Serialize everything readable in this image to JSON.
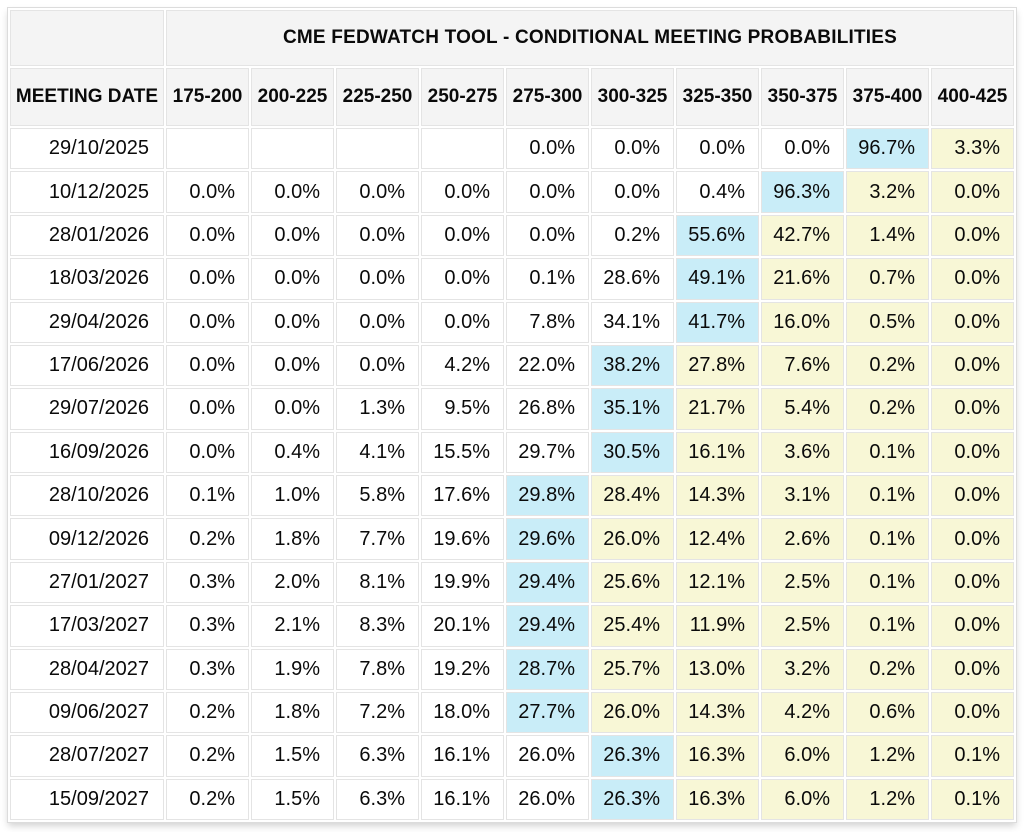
{
  "colors": {
    "highlight_blue": "#c9edf8",
    "highlight_yellow": "#f8f7d6",
    "header_bg": "#f4f4f4",
    "grid_line": "#e4e4e4"
  },
  "chart_data": {
    "type": "table",
    "title": "CME FEDWATCH TOOL - CONDITIONAL MEETING PROBABILITIES",
    "row_header_label": "MEETING DATE",
    "columns": [
      "175-200",
      "200-225",
      "225-250",
      "250-275",
      "275-300",
      "300-325",
      "325-350",
      "350-375",
      "375-400",
      "400-425"
    ],
    "rows": [
      {
        "date": "29/10/2025",
        "values": [
          "",
          "",
          "",
          "",
          "0.0%",
          "0.0%",
          "0.0%",
          "0.0%",
          "96.7%",
          "3.3%"
        ],
        "highlight_col": 8
      },
      {
        "date": "10/12/2025",
        "values": [
          "0.0%",
          "0.0%",
          "0.0%",
          "0.0%",
          "0.0%",
          "0.0%",
          "0.4%",
          "96.3%",
          "3.2%",
          "0.0%"
        ],
        "highlight_col": 7
      },
      {
        "date": "28/01/2026",
        "values": [
          "0.0%",
          "0.0%",
          "0.0%",
          "0.0%",
          "0.0%",
          "0.2%",
          "55.6%",
          "42.7%",
          "1.4%",
          "0.0%"
        ],
        "highlight_col": 6
      },
      {
        "date": "18/03/2026",
        "values": [
          "0.0%",
          "0.0%",
          "0.0%",
          "0.0%",
          "0.1%",
          "28.6%",
          "49.1%",
          "21.6%",
          "0.7%",
          "0.0%"
        ],
        "highlight_col": 6
      },
      {
        "date": "29/04/2026",
        "values": [
          "0.0%",
          "0.0%",
          "0.0%",
          "0.0%",
          "7.8%",
          "34.1%",
          "41.7%",
          "16.0%",
          "0.5%",
          "0.0%"
        ],
        "highlight_col": 6
      },
      {
        "date": "17/06/2026",
        "values": [
          "0.0%",
          "0.0%",
          "0.0%",
          "4.2%",
          "22.0%",
          "38.2%",
          "27.8%",
          "7.6%",
          "0.2%",
          "0.0%"
        ],
        "highlight_col": 5
      },
      {
        "date": "29/07/2026",
        "values": [
          "0.0%",
          "0.0%",
          "1.3%",
          "9.5%",
          "26.8%",
          "35.1%",
          "21.7%",
          "5.4%",
          "0.2%",
          "0.0%"
        ],
        "highlight_col": 5
      },
      {
        "date": "16/09/2026",
        "values": [
          "0.0%",
          "0.4%",
          "4.1%",
          "15.5%",
          "29.7%",
          "30.5%",
          "16.1%",
          "3.6%",
          "0.1%",
          "0.0%"
        ],
        "highlight_col": 5
      },
      {
        "date": "28/10/2026",
        "values": [
          "0.1%",
          "1.0%",
          "5.8%",
          "17.6%",
          "29.8%",
          "28.4%",
          "14.3%",
          "3.1%",
          "0.1%",
          "0.0%"
        ],
        "highlight_col": 4
      },
      {
        "date": "09/12/2026",
        "values": [
          "0.2%",
          "1.8%",
          "7.7%",
          "19.6%",
          "29.6%",
          "26.0%",
          "12.4%",
          "2.6%",
          "0.1%",
          "0.0%"
        ],
        "highlight_col": 4
      },
      {
        "date": "27/01/2027",
        "values": [
          "0.3%",
          "2.0%",
          "8.1%",
          "19.9%",
          "29.4%",
          "25.6%",
          "12.1%",
          "2.5%",
          "0.1%",
          "0.0%"
        ],
        "highlight_col": 4
      },
      {
        "date": "17/03/2027",
        "values": [
          "0.3%",
          "2.1%",
          "8.3%",
          "20.1%",
          "29.4%",
          "25.4%",
          "11.9%",
          "2.5%",
          "0.1%",
          "0.0%"
        ],
        "highlight_col": 4
      },
      {
        "date": "28/04/2027",
        "values": [
          "0.3%",
          "1.9%",
          "7.8%",
          "19.2%",
          "28.7%",
          "25.7%",
          "13.0%",
          "3.2%",
          "0.2%",
          "0.0%"
        ],
        "highlight_col": 4
      },
      {
        "date": "09/06/2027",
        "values": [
          "0.2%",
          "1.8%",
          "7.2%",
          "18.0%",
          "27.7%",
          "26.0%",
          "14.3%",
          "4.2%",
          "0.6%",
          "0.0%"
        ],
        "highlight_col": 4
      },
      {
        "date": "28/07/2027",
        "values": [
          "0.2%",
          "1.5%",
          "6.3%",
          "16.1%",
          "26.0%",
          "26.3%",
          "16.3%",
          "6.0%",
          "1.2%",
          "0.1%"
        ],
        "highlight_col": 5
      },
      {
        "date": "15/09/2027",
        "values": [
          "0.2%",
          "1.5%",
          "6.3%",
          "16.1%",
          "26.0%",
          "26.3%",
          "16.3%",
          "6.0%",
          "1.2%",
          "0.1%"
        ],
        "highlight_col": 5
      }
    ]
  }
}
